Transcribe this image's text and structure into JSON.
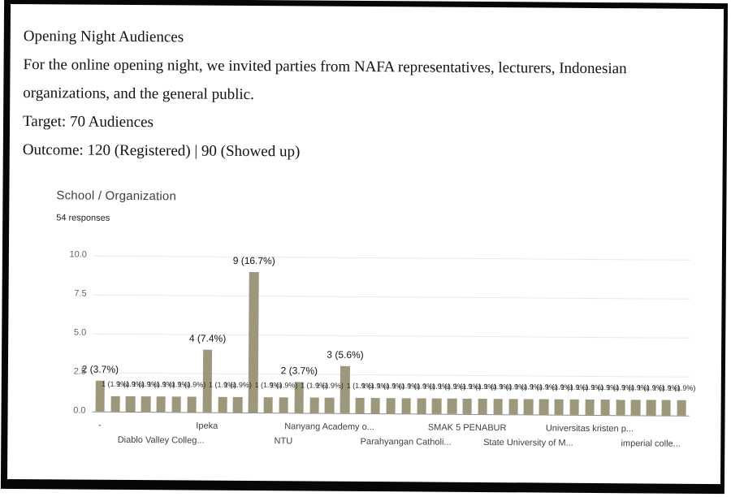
{
  "document": {
    "title": "Opening Night Audiences",
    "body": "For the online opening night, we invited parties from NAFA representatives, lecturers, Indonesian organizations, and the general public.",
    "target": "Target: 70 Audiences",
    "outcome": "Outcome: 120 (Registered) | 90 (Showed up)"
  },
  "chart": {
    "title": "School / Organization",
    "responses": "54 responses",
    "bar_color": "#9d977b"
  },
  "chart_data": {
    "type": "bar",
    "title": "School / Organization",
    "responses_count": 54,
    "ylabel": "",
    "xlabel": "",
    "ylim": [
      0,
      10
    ],
    "y_ticks": [
      0,
      2.5,
      5,
      7.5,
      10
    ],
    "grid": true,
    "legend": false,
    "values": [
      2,
      1,
      1,
      1,
      1,
      1,
      1,
      4,
      1,
      1,
      9,
      1,
      1,
      2,
      1,
      1,
      3,
      1,
      1,
      1,
      1,
      1,
      1,
      1,
      1,
      1,
      1,
      1,
      1,
      1,
      1,
      1,
      1,
      1,
      1,
      1,
      1,
      1,
      1
    ],
    "label_map": {
      "1": "1 (1.9%)",
      "2": "2 (3.7%)",
      "3": "3 (5.6%)",
      "4": "4 (7.4%)",
      "9": "9 (16.7%)"
    },
    "x_ticks": [
      {
        "index": 0,
        "label": "-"
      },
      {
        "index": 4,
        "label": "Diablo Valley Colleg..."
      },
      {
        "index": 7,
        "label": "Ipeka"
      },
      {
        "index": 12,
        "label": "NTU"
      },
      {
        "index": 15,
        "label": "Nanyang Academy o..."
      },
      {
        "index": 20,
        "label": "Parahyangan Catholi..."
      },
      {
        "index": 24,
        "label": "SMAK 5 PENABUR"
      },
      {
        "index": 28,
        "label": "State University of M..."
      },
      {
        "index": 32,
        "label": "Universitas kristen p..."
      },
      {
        "index": 36,
        "label": "imperial colle..."
      }
    ]
  }
}
